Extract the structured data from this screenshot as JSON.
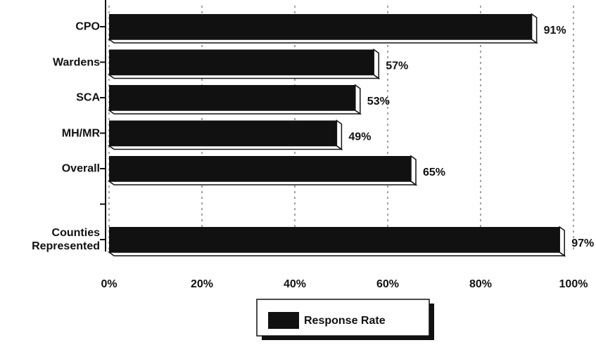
{
  "chart_data": {
    "type": "hbar",
    "categories": [
      "CPO",
      "Wardens",
      "SCA",
      "MH/MR",
      "Overall",
      null,
      "Counties Represented"
    ],
    "series": [
      {
        "name": "Response Rate",
        "color": "#111111",
        "values": [
          91,
          57,
          53,
          49,
          65,
          null,
          97
        ],
        "value_labels": [
          "91%",
          "57%",
          "53%",
          "49%",
          "65%",
          null,
          "97%"
        ]
      }
    ],
    "xlim": [
      0,
      100
    ],
    "xticks": [
      {
        "value": 0,
        "label": "0%"
      },
      {
        "value": 20,
        "label": "20%"
      },
      {
        "value": 40,
        "label": "40%"
      },
      {
        "value": 60,
        "label": "60%"
      },
      {
        "value": 80,
        "label": "80%"
      },
      {
        "value": 100,
        "label": "100%"
      }
    ],
    "grid": true,
    "legend": "bottom"
  }
}
